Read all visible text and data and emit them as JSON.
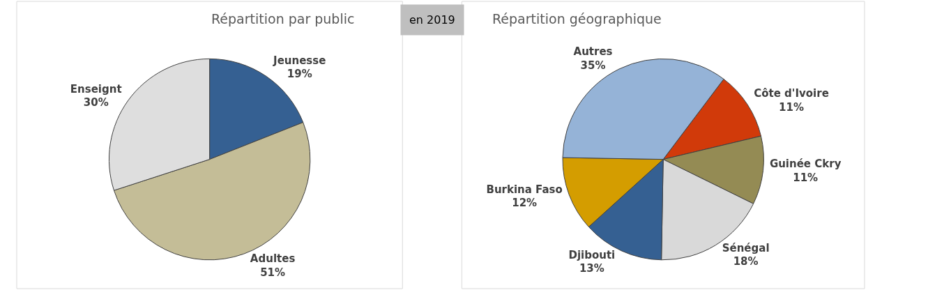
{
  "chart_data": [
    {
      "type": "pie",
      "title": "Répartition par public",
      "annotations": [
        "en 2019"
      ],
      "categories": [
        "Jeunesse",
        "Adultes",
        "Enseignt"
      ],
      "values": [
        19,
        51,
        30
      ],
      "value_labels": [
        "19%",
        "51%",
        "30%"
      ],
      "colors": [
        "#356092",
        "#c4bd97",
        "#dedede"
      ]
    },
    {
      "type": "pie",
      "title": "Répartition géographique",
      "categories": [
        "Côte d'Ivoire",
        "Guinée Ckry",
        "Sénégal",
        "Djibouti",
        "Burkina Faso",
        "Autres"
      ],
      "values": [
        11,
        11,
        18,
        13,
        12,
        35
      ],
      "value_labels": [
        "11%",
        "11%",
        "18%",
        "13%",
        "12%",
        "35%"
      ],
      "colors": [
        "#d13a0a",
        "#948b54",
        "#d9d9d9",
        "#356092",
        "#d49d00",
        "#95b3d7"
      ]
    }
  ]
}
